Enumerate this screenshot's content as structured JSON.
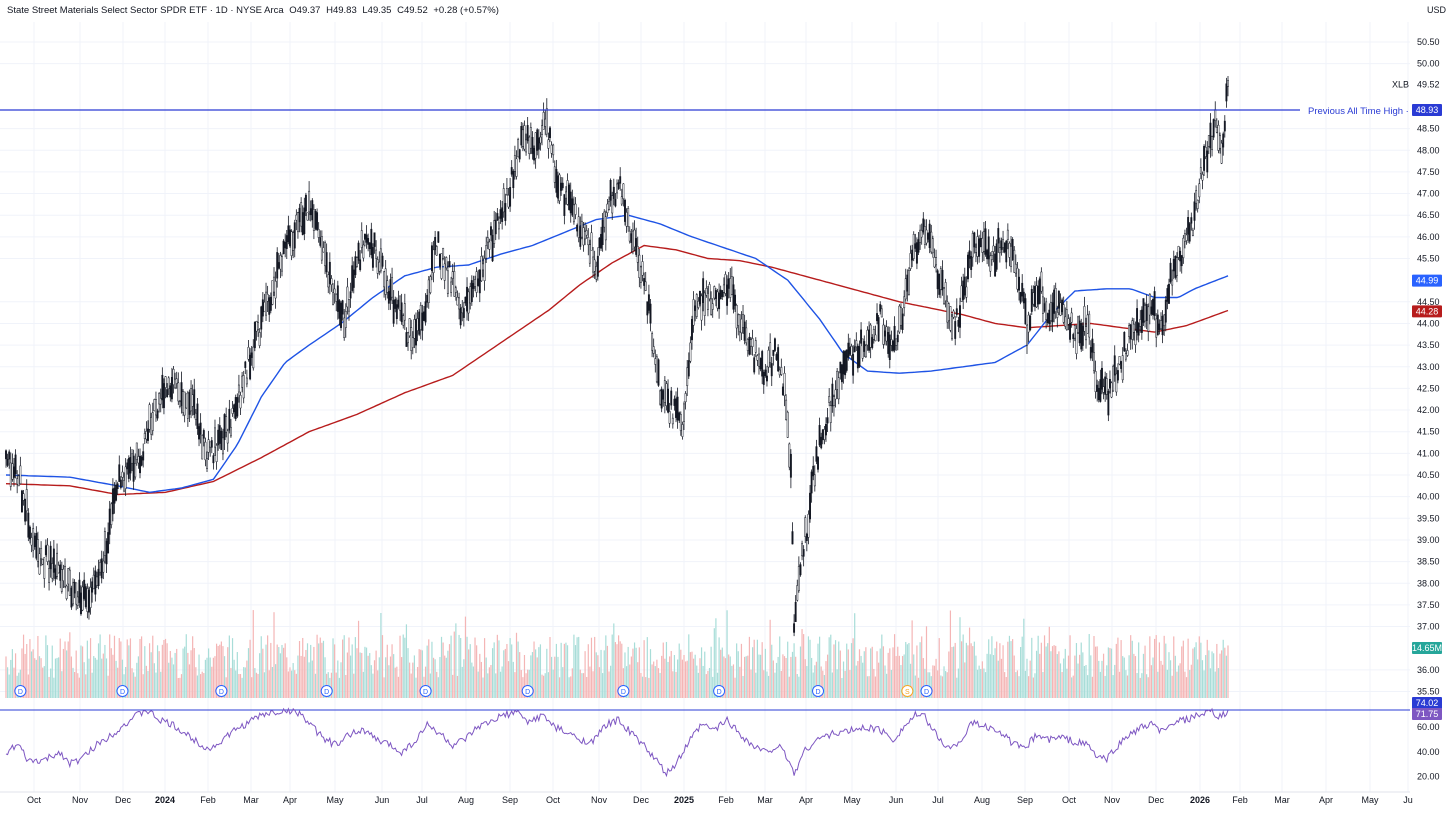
{
  "header": {
    "title": "State Street Materials Select Sector SPDR ETF · 1D · NYSE Arca",
    "open": "O49.37",
    "high": "H49.83",
    "low": "L49.35",
    "close": "C49.52",
    "change": "+0.28 (+0.57%)"
  },
  "currency": "USD",
  "chart_data": {
    "type": "candlestick",
    "symbol": "XLB",
    "price_axis": {
      "ticks": [
        "50.50",
        "50.00",
        "49.52",
        "48.50",
        "48.00",
        "47.50",
        "47.00",
        "46.50",
        "46.00",
        "45.50",
        "44.99",
        "44.50",
        "44.28",
        "44.00",
        "43.50",
        "43.00",
        "42.50",
        "42.00",
        "41.50",
        "41.00",
        "40.50",
        "40.00",
        "39.50",
        "39.00",
        "38.50",
        "38.00",
        "37.50",
        "37.00",
        "14.65M",
        "36.00",
        "35.50",
        "74.02",
        "71.75",
        "60.00",
        "40.00",
        "20.00"
      ],
      "range": [
        35.2,
        50.9
      ]
    },
    "rsi_axis": {
      "ticks": [
        "60.00",
        "40.00",
        "20.00"
      ],
      "range": [
        15,
        78
      ]
    },
    "time_axis": {
      "labels": [
        "Oct",
        "Nov",
        "Dec",
        "2024",
        "Feb",
        "Mar",
        "Apr",
        "May",
        "Jun",
        "Jul",
        "Aug",
        "Sep",
        "Oct",
        "Nov",
        "Dec",
        "2025",
        "Feb",
        "Mar",
        "Apr",
        "May",
        "Jun",
        "Jul",
        "Aug",
        "Sep",
        "Oct",
        "Nov",
        "Dec",
        "2026",
        "Feb",
        "Mar",
        "Apr",
        "May",
        "Ju"
      ]
    },
    "price_anchors": [
      [
        0,
        40.8
      ],
      [
        8,
        40.5
      ],
      [
        18,
        38.8
      ],
      [
        28,
        38.4
      ],
      [
        40,
        37.9
      ],
      [
        48,
        37.7
      ],
      [
        58,
        38.0
      ],
      [
        66,
        39.4
      ],
      [
        70,
        40.3
      ],
      [
        78,
        40.7
      ],
      [
        84,
        40.9
      ],
      [
        92,
        41.8
      ],
      [
        100,
        42.7
      ],
      [
        110,
        42.3
      ],
      [
        118,
        42.0
      ],
      [
        126,
        41.0
      ],
      [
        134,
        41.2
      ],
      [
        142,
        41.8
      ],
      [
        150,
        42.8
      ],
      [
        158,
        43.8
      ],
      [
        166,
        44.6
      ],
      [
        174,
        45.6
      ],
      [
        182,
        46.3
      ],
      [
        190,
        46.7
      ],
      [
        196,
        46.2
      ],
      [
        204,
        44.9
      ],
      [
        212,
        44.0
      ],
      [
        220,
        45.5
      ],
      [
        228,
        46.0
      ],
      [
        234,
        45.4
      ],
      [
        240,
        44.7
      ],
      [
        248,
        44.2
      ],
      [
        254,
        43.6
      ],
      [
        262,
        44.3
      ],
      [
        270,
        45.9
      ],
      [
        278,
        45.1
      ],
      [
        286,
        44.2
      ],
      [
        294,
        44.8
      ],
      [
        302,
        45.7
      ],
      [
        310,
        46.5
      ],
      [
        318,
        47.4
      ],
      [
        324,
        48.5
      ],
      [
        332,
        47.9
      ],
      [
        338,
        48.7
      ],
      [
        344,
        47.6
      ],
      [
        350,
        47.0
      ],
      [
        358,
        46.4
      ],
      [
        364,
        46.0
      ],
      [
        370,
        45.4
      ],
      [
        378,
        46.8
      ],
      [
        386,
        47.1
      ],
      [
        392,
        46.0
      ],
      [
        398,
        45.3
      ],
      [
        404,
        44.0
      ],
      [
        410,
        42.4
      ],
      [
        418,
        42.0
      ],
      [
        424,
        41.6
      ],
      [
        430,
        44.0
      ],
      [
        438,
        44.6
      ],
      [
        446,
        44.4
      ],
      [
        454,
        44.8
      ],
      [
        462,
        44.0
      ],
      [
        470,
        43.2
      ],
      [
        476,
        42.8
      ],
      [
        482,
        43.3
      ],
      [
        488,
        42.6
      ],
      [
        492,
        40.5
      ],
      [
        494,
        37.2
      ],
      [
        500,
        38.8
      ],
      [
        508,
        40.9
      ],
      [
        516,
        42.0
      ],
      [
        524,
        43.0
      ],
      [
        532,
        43.3
      ],
      [
        540,
        43.6
      ],
      [
        548,
        44.1
      ],
      [
        556,
        43.5
      ],
      [
        562,
        44.3
      ],
      [
        568,
        45.6
      ],
      [
        574,
        46.1
      ],
      [
        580,
        45.8
      ],
      [
        588,
        44.6
      ],
      [
        594,
        44.0
      ],
      [
        600,
        44.5
      ],
      [
        606,
        45.8
      ],
      [
        612,
        46.0
      ],
      [
        618,
        45.5
      ],
      [
        626,
        46.0
      ],
      [
        634,
        45.3
      ],
      [
        640,
        44.0
      ],
      [
        648,
        44.8
      ],
      [
        654,
        44.2
      ],
      [
        662,
        44.4
      ],
      [
        670,
        43.8
      ],
      [
        678,
        44.0
      ],
      [
        684,
        42.6
      ],
      [
        690,
        42.3
      ],
      [
        696,
        42.9
      ],
      [
        704,
        43.6
      ],
      [
        712,
        44.2
      ],
      [
        718,
        44.4
      ],
      [
        724,
        43.9
      ],
      [
        730,
        45.0
      ],
      [
        738,
        45.7
      ],
      [
        744,
        46.3
      ],
      [
        750,
        47.6
      ],
      [
        758,
        48.6
      ],
      [
        762,
        48.2
      ],
      [
        766,
        49.4
      ]
    ],
    "sma_blue_anchors": [
      [
        0,
        40.5
      ],
      [
        40,
        40.45
      ],
      [
        70,
        40.25
      ],
      [
        90,
        40.1
      ],
      [
        110,
        40.2
      ],
      [
        130,
        40.4
      ],
      [
        145,
        41.2
      ],
      [
        160,
        42.3
      ],
      [
        175,
        43.1
      ],
      [
        190,
        43.5
      ],
      [
        210,
        44.0
      ],
      [
        230,
        44.6
      ],
      [
        250,
        45.1
      ],
      [
        270,
        45.3
      ],
      [
        290,
        45.35
      ],
      [
        310,
        45.6
      ],
      [
        330,
        45.8
      ],
      [
        350,
        46.1
      ],
      [
        370,
        46.4
      ],
      [
        390,
        46.5
      ],
      [
        410,
        46.3
      ],
      [
        430,
        46.0
      ],
      [
        450,
        45.75
      ],
      [
        470,
        45.5
      ],
      [
        490,
        45.0
      ],
      [
        510,
        44.1
      ],
      [
        525,
        43.3
      ],
      [
        540,
        42.9
      ],
      [
        560,
        42.85
      ],
      [
        580,
        42.9
      ],
      [
        600,
        43.0
      ],
      [
        620,
        43.1
      ],
      [
        640,
        43.5
      ],
      [
        655,
        44.2
      ],
      [
        670,
        44.75
      ],
      [
        690,
        44.8
      ],
      [
        705,
        44.8
      ],
      [
        720,
        44.6
      ],
      [
        735,
        44.6
      ],
      [
        745,
        44.8
      ],
      [
        766,
        45.1
      ]
    ],
    "sma_red_anchors": [
      [
        0,
        40.3
      ],
      [
        40,
        40.25
      ],
      [
        70,
        40.05
      ],
      [
        100,
        40.1
      ],
      [
        130,
        40.35
      ],
      [
        160,
        40.9
      ],
      [
        190,
        41.5
      ],
      [
        220,
        41.9
      ],
      [
        250,
        42.4
      ],
      [
        280,
        42.8
      ],
      [
        300,
        43.3
      ],
      [
        320,
        43.8
      ],
      [
        340,
        44.3
      ],
      [
        360,
        44.9
      ],
      [
        380,
        45.4
      ],
      [
        400,
        45.8
      ],
      [
        420,
        45.7
      ],
      [
        440,
        45.5
      ],
      [
        460,
        45.45
      ],
      [
        480,
        45.3
      ],
      [
        500,
        45.1
      ],
      [
        520,
        44.9
      ],
      [
        540,
        44.7
      ],
      [
        560,
        44.5
      ],
      [
        580,
        44.35
      ],
      [
        600,
        44.2
      ],
      [
        620,
        44.0
      ],
      [
        640,
        43.9
      ],
      [
        660,
        43.95
      ],
      [
        680,
        44.0
      ],
      [
        700,
        43.9
      ],
      [
        720,
        43.8
      ],
      [
        740,
        43.95
      ],
      [
        766,
        44.3
      ]
    ],
    "rsi_anchors": [
      [
        0,
        40
      ],
      [
        8,
        45
      ],
      [
        14,
        32
      ],
      [
        24,
        33
      ],
      [
        34,
        40
      ],
      [
        40,
        30
      ],
      [
        48,
        35
      ],
      [
        56,
        45
      ],
      [
        64,
        52
      ],
      [
        72,
        60
      ],
      [
        80,
        68
      ],
      [
        88,
        74
      ],
      [
        96,
        66
      ],
      [
        104,
        62
      ],
      [
        112,
        55
      ],
      [
        120,
        48
      ],
      [
        128,
        42
      ],
      [
        136,
        50
      ],
      [
        144,
        58
      ],
      [
        152,
        64
      ],
      [
        160,
        70
      ],
      [
        168,
        72
      ],
      [
        176,
        74
      ],
      [
        184,
        72
      ],
      [
        192,
        60
      ],
      [
        200,
        50
      ],
      [
        208,
        45
      ],
      [
        216,
        55
      ],
      [
        224,
        58
      ],
      [
        232,
        50
      ],
      [
        240,
        46
      ],
      [
        248,
        40
      ],
      [
        256,
        48
      ],
      [
        264,
        62
      ],
      [
        272,
        55
      ],
      [
        280,
        45
      ],
      [
        288,
        50
      ],
      [
        296,
        60
      ],
      [
        304,
        64
      ],
      [
        312,
        70
      ],
      [
        320,
        72
      ],
      [
        328,
        64
      ],
      [
        336,
        70
      ],
      [
        344,
        60
      ],
      [
        352,
        55
      ],
      [
        360,
        50
      ],
      [
        368,
        48
      ],
      [
        376,
        62
      ],
      [
        384,
        66
      ],
      [
        392,
        55
      ],
      [
        400,
        45
      ],
      [
        408,
        32
      ],
      [
        414,
        22
      ],
      [
        420,
        30
      ],
      [
        428,
        48
      ],
      [
        436,
        62
      ],
      [
        444,
        58
      ],
      [
        452,
        66
      ],
      [
        460,
        55
      ],
      [
        468,
        45
      ],
      [
        476,
        40
      ],
      [
        484,
        45
      ],
      [
        490,
        35
      ],
      [
        494,
        22
      ],
      [
        500,
        40
      ],
      [
        508,
        50
      ],
      [
        516,
        54
      ],
      [
        524,
        56
      ],
      [
        532,
        58
      ],
      [
        540,
        60
      ],
      [
        548,
        58
      ],
      [
        556,
        50
      ],
      [
        564,
        62
      ],
      [
        570,
        70
      ],
      [
        576,
        68
      ],
      [
        584,
        52
      ],
      [
        592,
        42
      ],
      [
        600,
        52
      ],
      [
        606,
        64
      ],
      [
        614,
        60
      ],
      [
        622,
        58
      ],
      [
        630,
        48
      ],
      [
        638,
        42
      ],
      [
        646,
        54
      ],
      [
        654,
        50
      ],
      [
        662,
        52
      ],
      [
        670,
        48
      ],
      [
        678,
        46
      ],
      [
        684,
        36
      ],
      [
        690,
        34
      ],
      [
        696,
        44
      ],
      [
        704,
        54
      ],
      [
        712,
        60
      ],
      [
        718,
        62
      ],
      [
        726,
        56
      ],
      [
        732,
        64
      ],
      [
        740,
        66
      ],
      [
        748,
        70
      ],
      [
        756,
        72
      ],
      [
        760,
        68
      ],
      [
        766,
        72
      ]
    ],
    "volume_seed": 7,
    "annotations": {
      "previous_ath_label": "Previous All Time High",
      "previous_ath_value": 48.93,
      "previous_ath_price_label": "48.93",
      "last_price_label": "49.52",
      "blue_ma_label": "44.99",
      "red_ma_label": "44.28",
      "volume_label": "14.65M",
      "rsi_level": 74.02,
      "rsi_level_label": "74.02",
      "rsi_value_label": "71.75",
      "symbol_label": "XLB"
    },
    "events": [
      {
        "i": 4,
        "t": "D"
      },
      {
        "i": 68,
        "t": "D"
      },
      {
        "i": 130,
        "t": "D"
      },
      {
        "i": 196,
        "t": "D"
      },
      {
        "i": 258,
        "t": "D"
      },
      {
        "i": 322,
        "t": "D"
      },
      {
        "i": 382,
        "t": "D"
      },
      {
        "i": 442,
        "t": "D"
      },
      {
        "i": 504,
        "t": "D"
      },
      {
        "i": 560,
        "t": "S"
      },
      {
        "i": 572,
        "t": "D"
      }
    ],
    "colors": {
      "candle": "#131722",
      "sma_blue": "#2962ff",
      "sma_blue_line": "#1e53e5",
      "sma_red": "#b71c1c",
      "rsi": "#7e57c2",
      "ath_line": "#2a3bd4",
      "volume_up": "#a8ddd8",
      "volume_down": "#f4b5b5",
      "volume_label_bg": "#26a69a",
      "event_blue": "#2962ff",
      "event_orange": "#f5a623",
      "grid": "#f0f3fa"
    },
    "grid": true,
    "legend": "none"
  }
}
